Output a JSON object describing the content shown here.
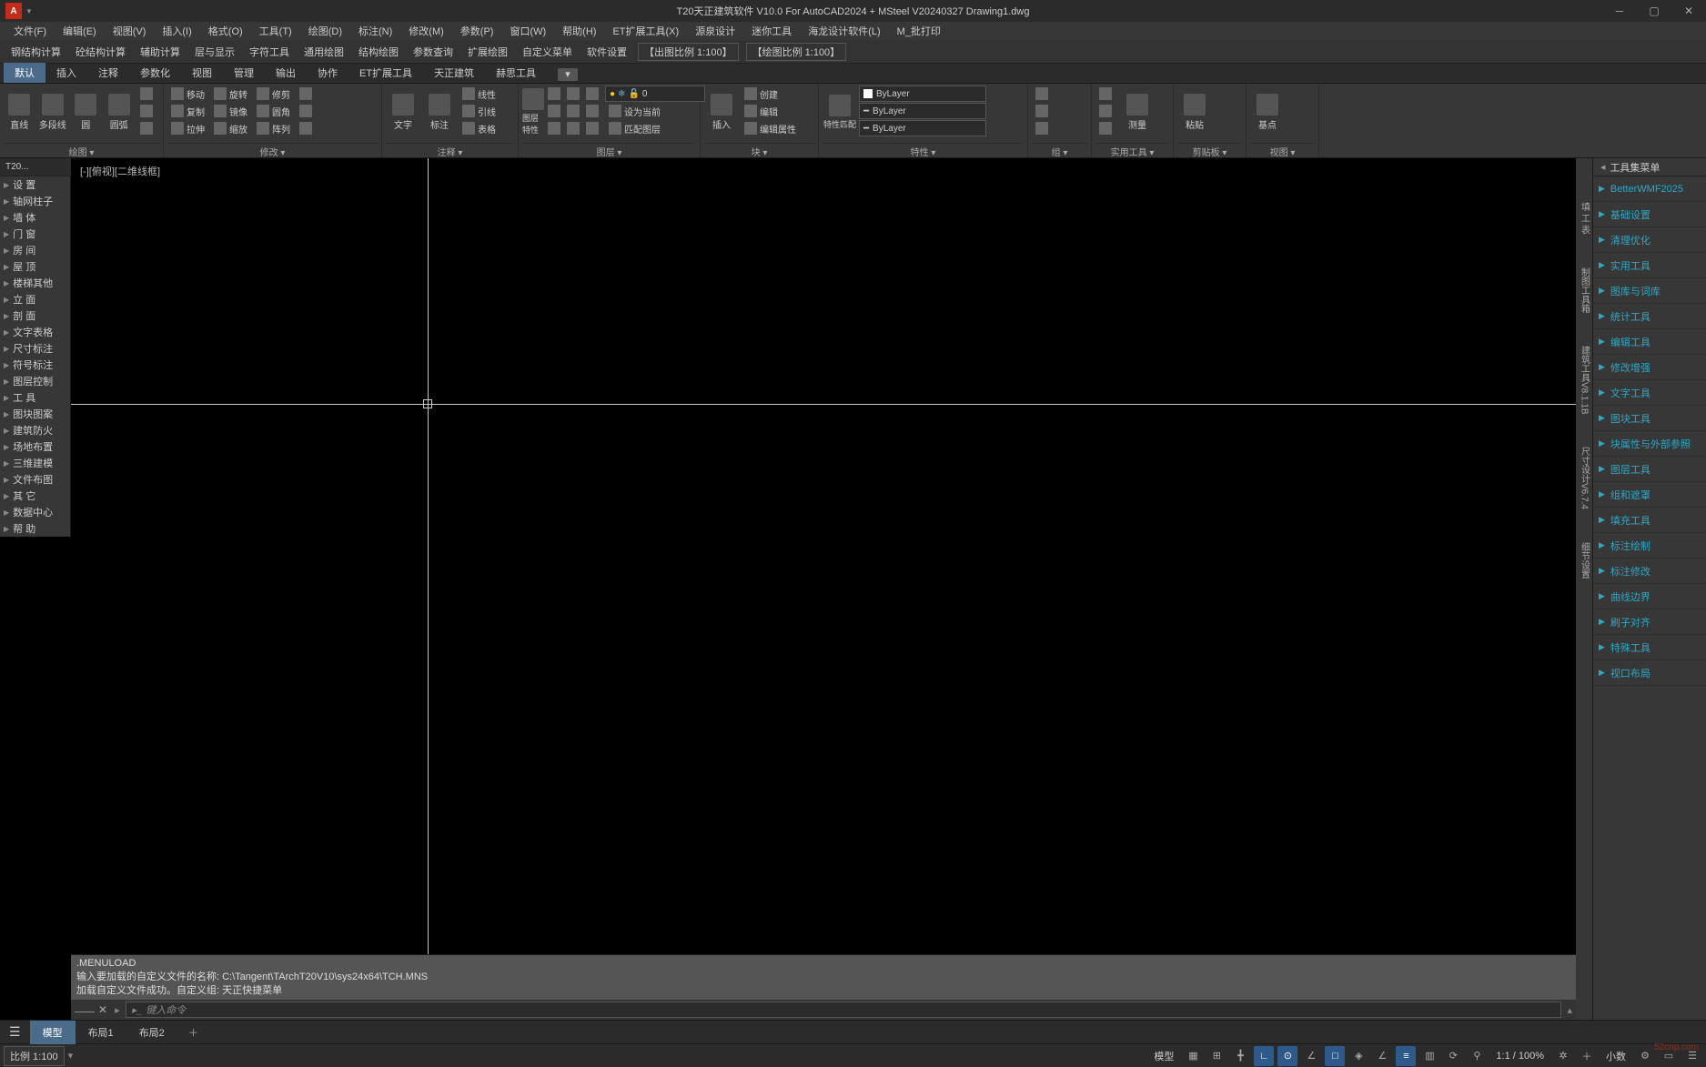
{
  "title": "T20天正建筑软件 V10.0 For AutoCAD2024 + MSteel V20240327    Drawing1.dwg",
  "menubar": [
    "文件(F)",
    "编辑(E)",
    "视图(V)",
    "插入(I)",
    "格式(O)",
    "工具(T)",
    "绘图(D)",
    "标注(N)",
    "修改(M)",
    "参数(P)",
    "窗口(W)",
    "帮助(H)",
    "ET扩展工具(X)",
    "源泉设计",
    "迷你工具",
    "海龙设计软件(L)",
    "M_批打印"
  ],
  "toolbar_row": [
    "钢结构计算",
    "砼结构计算",
    "辅助计算",
    "层与显示",
    "字符工具",
    "通用绘图",
    "结构绘图",
    "参数查询",
    "扩展绘图",
    "自定义菜单",
    "软件设置"
  ],
  "scale_label1": "【出图比例 1:100】",
  "scale_label2": "【绘图比例 1:100】",
  "ribbon_tabs": [
    "默认",
    "插入",
    "注释",
    "参数化",
    "视图",
    "管理",
    "输出",
    "协作",
    "ET扩展工具",
    "天正建筑",
    "赫思工具"
  ],
  "ribbon_panels": {
    "draw": {
      "label": "绘图 ▾",
      "big": [
        {
          "l": "直线"
        },
        {
          "l": "多段线"
        },
        {
          "l": "圆"
        },
        {
          "l": "圆弧"
        }
      ]
    },
    "modify": {
      "label": "修改 ▾",
      "rows": [
        [
          "移动",
          "旋转",
          "修剪"
        ],
        [
          "复制",
          "镜像",
          "圆角"
        ],
        [
          "拉伸",
          "缩放",
          "阵列"
        ]
      ]
    },
    "annotate": {
      "label": "注释 ▾",
      "big": [
        {
          "l": "文字"
        },
        {
          "l": "标注"
        }
      ],
      "rows": [
        [
          "线性"
        ],
        [
          "引线"
        ],
        [
          "表格"
        ]
      ]
    },
    "layer": {
      "label": "图层 ▾",
      "big": [
        {
          "l": "图层特性"
        }
      ],
      "combo_val": "0",
      "rows": [
        [
          "设为当前"
        ],
        [
          "匹配图层"
        ]
      ]
    },
    "block": {
      "label": "块 ▾",
      "big": [
        {
          "l": "插入"
        }
      ],
      "rows": [
        [
          "创建"
        ],
        [
          "编辑"
        ],
        [
          "编辑属性"
        ]
      ]
    },
    "props": {
      "label": "特性 ▾",
      "big": [
        {
          "l": "特性匹配"
        }
      ],
      "combos": [
        "ByLayer",
        "ByLayer",
        "ByLayer"
      ]
    },
    "group": {
      "label": "组 ▾"
    },
    "util": {
      "label": "实用工具 ▾",
      "big": [
        {
          "l": "测量"
        }
      ]
    },
    "clip": {
      "label": "剪贴板 ▾",
      "big": [
        {
          "l": "粘贴"
        }
      ]
    },
    "view": {
      "label": "视图 ▾",
      "big": [
        {
          "l": "基点"
        }
      ]
    }
  },
  "left_tab": "T20...",
  "left_palette": [
    "设    置",
    "轴网柱子",
    "墙    体",
    "门    窗",
    "房    间",
    "屋    顶",
    "楼梯其他",
    "立    面",
    "剖    面",
    "文字表格",
    "尺寸标注",
    "符号标注",
    "图层控制",
    "工    具",
    "图块图案",
    "建筑防火",
    "场地布置",
    "三维建模",
    "文件布图",
    "其    它",
    "数据中心",
    "帮    助"
  ],
  "viewport_label": "[-][俯视][二维线框]",
  "vert_tabs": [
    "填 工 表",
    "制图工具箱",
    "建筑工具V8.1.1B",
    "尺寸设计V6.7.4",
    "细节设置"
  ],
  "right_panel_title": "工具集菜单",
  "right_groups": [
    "BetterWMF2025",
    "基础设置",
    "清理优化",
    "实用工具",
    "图库与词库",
    "统计工具",
    "编辑工具",
    "修改增强",
    "文字工具",
    "图块工具",
    "块属性与外部参照",
    "图层工具",
    "组和遮罩",
    "填充工具",
    "标注绘制",
    "标注修改",
    "曲线边界",
    "刷子对齐",
    "特殊工具",
    "视口布局"
  ],
  "cmd_history": [
    ".MENULOAD",
    "输入要加载的自定义文件的名称: C:\\Tangent\\TArchT20V10\\sys24x64\\TCH.MNS",
    "加载自定义文件成功。自定义组: 天正快捷菜单"
  ],
  "cmd_placeholder": "键入命令",
  "bottom_tabs": {
    "model": "模型",
    "l1": "布局1",
    "l2": "布局2"
  },
  "status": {
    "scale_combo": "比例 1:100",
    "model_btn": "模型",
    "zoom": "1:1 / 100%",
    "precision": "小数"
  },
  "colors": {
    "accent": "#2ea8c7",
    "active_tab": "#4a6b8a",
    "logo": "#c42b1a",
    "bg": "#2b2b2b",
    "panel": "#373737"
  }
}
